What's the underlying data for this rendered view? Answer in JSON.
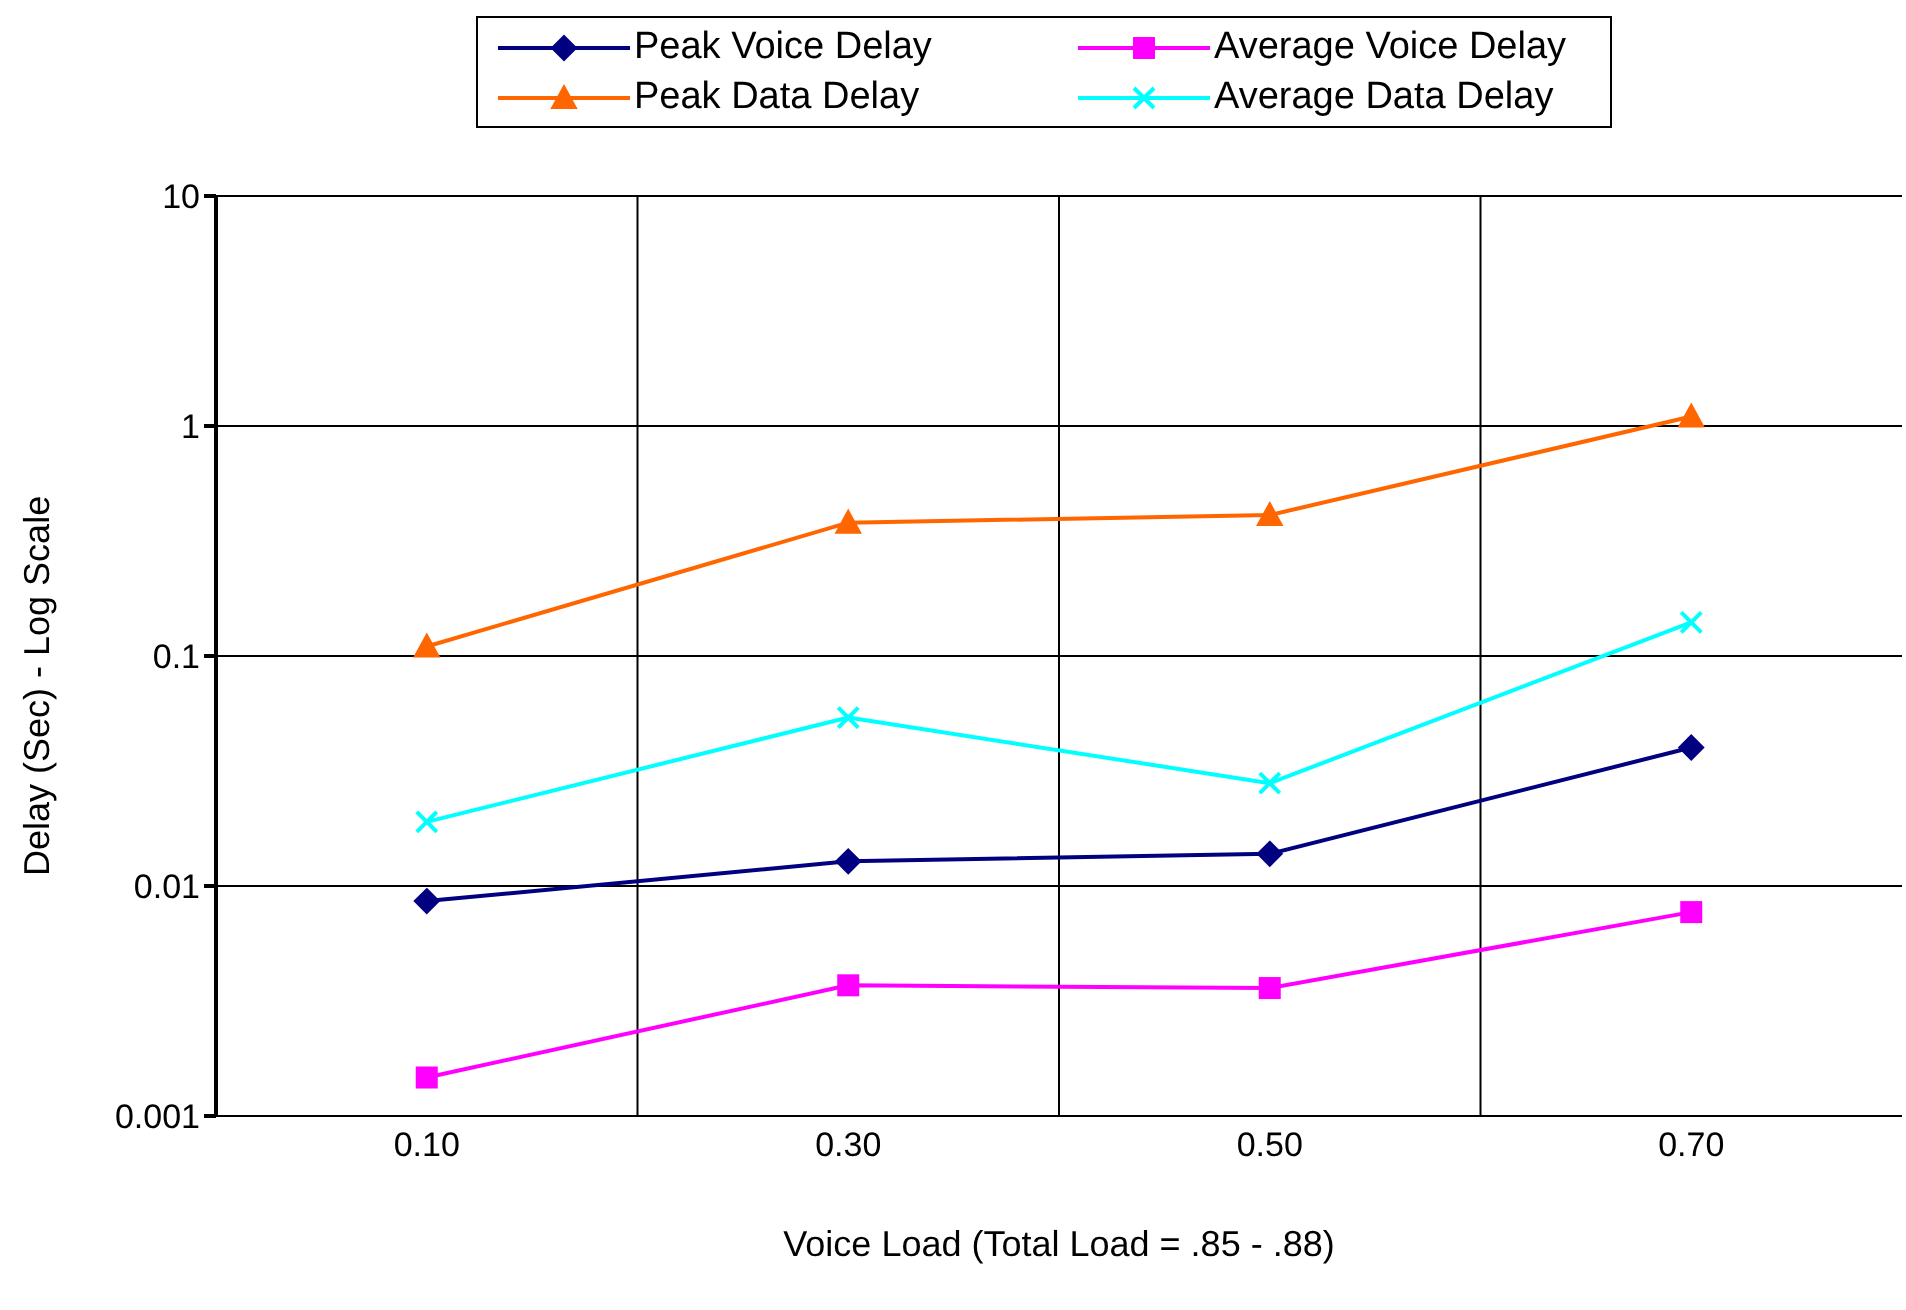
{
  "chart_data": {
    "type": "line",
    "xlabel": "Voice Load (Total Load = .85 - .88)",
    "ylabel": "Delay (Sec) - Log Scale",
    "categories": [
      "0.10",
      "0.30",
      "0.50",
      "0.70"
    ],
    "log": true,
    "ylim": [
      0.001,
      10
    ],
    "yticks": [
      0.001,
      0.01,
      0.1,
      1,
      10
    ],
    "grid": true,
    "legend": "top",
    "series": [
      {
        "name": "Peak Voice Delay",
        "color": "#000080",
        "marker": "diamond",
        "values": [
          0.0086,
          0.0128,
          0.0138,
          0.04
        ]
      },
      {
        "name": "Average Voice Delay",
        "color": "#ff00ff",
        "marker": "square",
        "values": [
          0.00147,
          0.0037,
          0.0036,
          0.0077
        ]
      },
      {
        "name": "Peak Data Delay",
        "color": "#ff6600",
        "marker": "triangle",
        "values": [
          0.11,
          0.38,
          0.41,
          1.1
        ]
      },
      {
        "name": "Average Data Delay",
        "color": "#00ffff",
        "marker": "cross",
        "values": [
          0.019,
          0.054,
          0.028,
          0.14
        ]
      }
    ]
  }
}
